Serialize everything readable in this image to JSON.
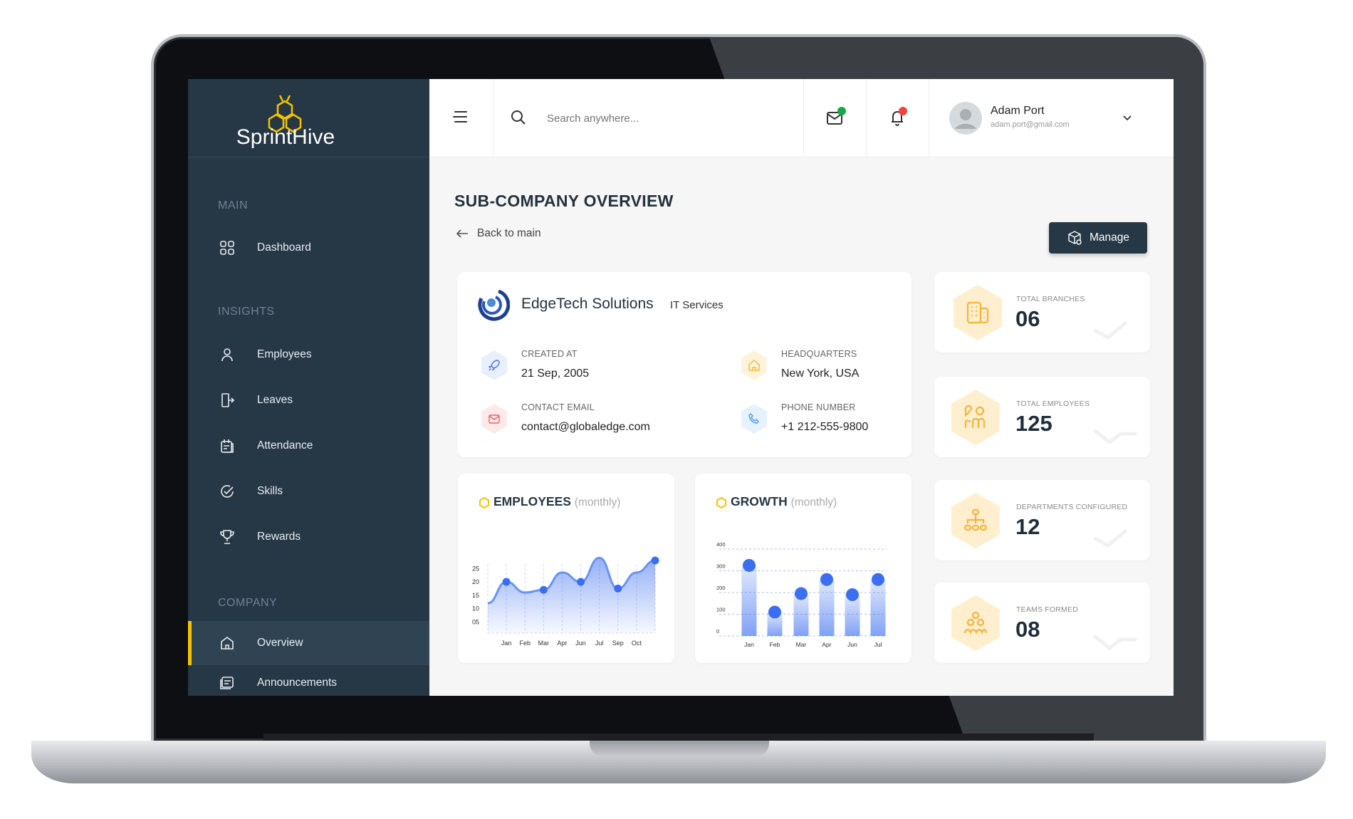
{
  "brand": {
    "name": "SprintHive",
    "accent": "#f5c400",
    "sidebar_bg": "#263746"
  },
  "sidebar": {
    "sections": [
      {
        "label": "MAIN",
        "items": [
          {
            "label": "Dashboard",
            "icon": "grid-icon"
          }
        ]
      },
      {
        "label": "INSIGHTS",
        "items": [
          {
            "label": "Employees",
            "icon": "user-icon"
          },
          {
            "label": "Leaves",
            "icon": "door-exit-icon"
          },
          {
            "label": "Attendance",
            "icon": "calendar-icon"
          },
          {
            "label": "Skills",
            "icon": "skill-check-icon"
          },
          {
            "label": "Rewards",
            "icon": "trophy-icon"
          }
        ]
      },
      {
        "label": "COMPANY",
        "items": [
          {
            "label": "Overview",
            "icon": "home-icon",
            "active": true
          },
          {
            "label": "Announcements",
            "icon": "announcement-icon"
          }
        ]
      }
    ]
  },
  "header": {
    "search_placeholder": "Search anywhere...",
    "mail_badge_color": "#19a54a",
    "bell_badge_color": "#f04444",
    "user": {
      "name": "Adam Port",
      "email": "adam.port@gmail.com"
    }
  },
  "page": {
    "title": "SUB-COMPANY OVERVIEW",
    "back_label": "Back to main",
    "manage_label": "Manage"
  },
  "company": {
    "name": "EdgeTech Solutions",
    "category": "IT Services",
    "fields": [
      {
        "label": "CREATED AT",
        "value": "21 Sep, 2005",
        "icon": "rocket-icon"
      },
      {
        "label": "HEADQUARTERS",
        "value": "New York, USA",
        "icon": "home-icon"
      },
      {
        "label": "CONTACT EMAIL",
        "value": "contact@globaledge.com",
        "icon": "mail-icon"
      },
      {
        "label": "PHONE NUMBER",
        "value": "+1 212-555-9800",
        "icon": "phone-icon"
      }
    ]
  },
  "stats": [
    {
      "label": "TOTAL BRANCHES",
      "value": "06",
      "icon": "building-icon"
    },
    {
      "label": "TOTAL EMPLOYEES",
      "value": "125",
      "icon": "people-icon"
    },
    {
      "label": "DEPARTMENTS CONFIGURED",
      "value": "12",
      "icon": "org-chart-icon"
    },
    {
      "label": "TEAMS FORMED",
      "value": "08",
      "icon": "team-icon"
    }
  ],
  "chart_data": [
    {
      "type": "area",
      "title": "EMPLOYEES",
      "subtitle": "(monthly)",
      "categories": [
        "",
        "Jan",
        "Feb",
        "Mar",
        "Apr",
        "Jun",
        "Jul",
        "Sep",
        "Oct",
        ""
      ],
      "values": [
        12,
        20,
        16,
        17,
        23.5,
        20,
        29,
        17.5,
        23.5,
        28
      ],
      "markers": [
        1,
        3,
        5,
        7,
        9
      ],
      "yticks": [
        "05",
        "10",
        "15",
        "20",
        "25"
      ],
      "ylim": [
        0,
        30
      ],
      "color": "#3b6ef0",
      "grid": "vertical dashed"
    },
    {
      "type": "bar",
      "title": "GROWTH",
      "subtitle": "(monthly)",
      "categories": [
        "Jan",
        "Feb",
        "Mar",
        "Apr",
        "Jun",
        "Jul"
      ],
      "values": [
        325,
        110,
        195,
        260,
        190,
        260
      ],
      "yticks": [
        "0",
        "100",
        "200",
        "300",
        "400"
      ],
      "ylim": [
        0,
        400
      ],
      "color": "#3b6ef0",
      "grid": "horizontal dashed"
    }
  ]
}
